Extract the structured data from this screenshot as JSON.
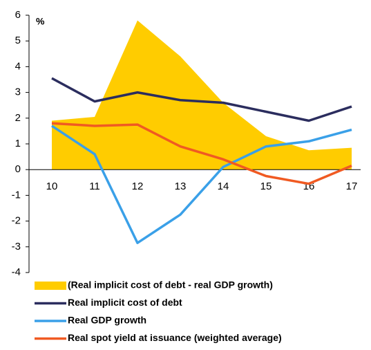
{
  "chart_data": {
    "type": "line",
    "y_label": "%",
    "categories": [
      "10",
      "11",
      "12",
      "13",
      "14",
      "15",
      "16",
      "17"
    ],
    "ylim": [
      -4,
      6
    ],
    "yticks": [
      -4,
      -3,
      -2,
      -1,
      0,
      1,
      2,
      3,
      4,
      5,
      6
    ],
    "grid": false,
    "legend": "bottom",
    "series": [
      {
        "name": "(Real implicit cost of debt - real GDP growth)",
        "type": "area",
        "color": "#ffcc00",
        "values": [
          1.9,
          2.05,
          5.8,
          4.4,
          2.6,
          1.3,
          0.75,
          0.85
        ]
      },
      {
        "name": "Real implicit cost of debt",
        "color": "#2b2d5e",
        "values": [
          3.55,
          2.65,
          3.0,
          2.7,
          2.6,
          2.25,
          1.9,
          2.45
        ]
      },
      {
        "name": "Real GDP growth",
        "color": "#3aa0e8",
        "values": [
          1.7,
          0.6,
          -2.85,
          -1.75,
          0.1,
          0.9,
          1.1,
          1.55
        ]
      },
      {
        "name": "Real spot yield at issuance (weighted average)",
        "color": "#f05a22",
        "values": [
          1.8,
          1.7,
          1.75,
          0.9,
          0.4,
          -0.25,
          -0.55,
          0.15
        ]
      }
    ]
  }
}
